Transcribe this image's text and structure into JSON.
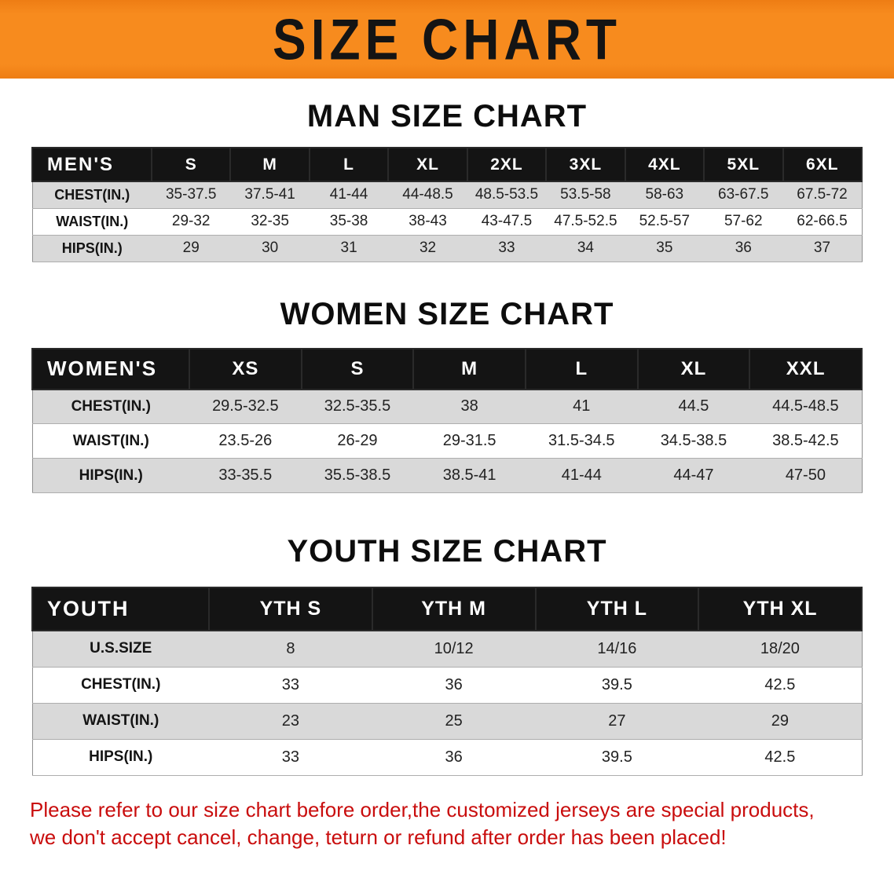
{
  "banner": {
    "title": "SIZE CHART",
    "bg_color": "#f78b1e",
    "text_color": "#141414"
  },
  "colors": {
    "table_header_bg": "#141414",
    "table_header_text": "#ffffff",
    "row_stripe": "#d9d9d9",
    "row_plain": "#ffffff",
    "footer_text": "#c90d0d"
  },
  "chart_data": [
    {
      "type": "table",
      "title": "MAN SIZE CHART",
      "columns": [
        "MEN'S",
        "S",
        "M",
        "L",
        "XL",
        "2XL",
        "3XL",
        "4XL",
        "5XL",
        "6XL"
      ],
      "rows": [
        [
          "CHEST(IN.)",
          "35-37.5",
          "37.5-41",
          "41-44",
          "44-48.5",
          "48.5-53.5",
          "53.5-58",
          "58-63",
          "63-67.5",
          "67.5-72"
        ],
        [
          "WAIST(IN.)",
          "29-32",
          "32-35",
          "35-38",
          "38-43",
          "43-47.5",
          "47.5-52.5",
          "52.5-57",
          "57-62",
          "62-66.5"
        ],
        [
          "HIPS(IN.)",
          "29",
          "30",
          "31",
          "32",
          "33",
          "34",
          "35",
          "36",
          "37"
        ]
      ]
    },
    {
      "type": "table",
      "title": "WOMEN SIZE CHART",
      "columns": [
        "WOMEN'S",
        "XS",
        "S",
        "M",
        "L",
        "XL",
        "XXL"
      ],
      "rows": [
        [
          "CHEST(IN.)",
          "29.5-32.5",
          "32.5-35.5",
          "38",
          "41",
          "44.5",
          "44.5-48.5"
        ],
        [
          "WAIST(IN.)",
          "23.5-26",
          "26-29",
          "29-31.5",
          "31.5-34.5",
          "34.5-38.5",
          "38.5-42.5"
        ],
        [
          "HIPS(IN.)",
          "33-35.5",
          "35.5-38.5",
          "38.5-41",
          "41-44",
          "44-47",
          "47-50"
        ]
      ]
    },
    {
      "type": "table",
      "title": "YOUTH SIZE CHART",
      "columns": [
        "YOUTH",
        "YTH S",
        "YTH M",
        "YTH L",
        "YTH XL"
      ],
      "rows": [
        [
          "U.S.SIZE",
          "8",
          "10/12",
          "14/16",
          "18/20"
        ],
        [
          "CHEST(IN.)",
          "33",
          "36",
          "39.5",
          "42.5"
        ],
        [
          "WAIST(IN.)",
          "23",
          "25",
          "27",
          "29"
        ],
        [
          "HIPS(IN.)",
          "33",
          "36",
          "39.5",
          "42.5"
        ]
      ]
    }
  ],
  "footer": {
    "line1": "Please refer to our size chart before order,the customized jerseys are special products,",
    "line2": "we don't accept cancel, change, teturn or refund after order has been placed!"
  }
}
